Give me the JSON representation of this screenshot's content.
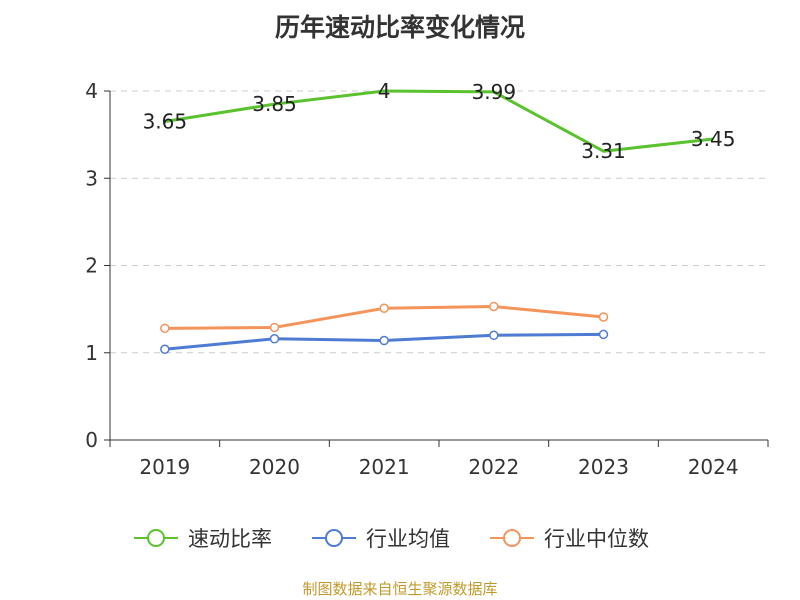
{
  "chart_data": {
    "type": "line",
    "title": "历年速动比率变化情况",
    "categories": [
      "2019",
      "2020",
      "2021",
      "2022",
      "2023",
      "2024"
    ],
    "ylim": [
      0,
      4
    ],
    "yticks": [
      "0",
      "1",
      "2",
      "3",
      "4"
    ],
    "grid": true,
    "series": [
      {
        "name": "速动比率",
        "color": "#5ac22e",
        "values": [
          3.65,
          3.85,
          4.0,
          3.99,
          3.31,
          3.45
        ],
        "labels": [
          "3.65",
          "3.85",
          "4",
          "3.99",
          "3.31",
          "3.45"
        ],
        "markers": false
      },
      {
        "name": "行业均值",
        "color": "#4e7bd3",
        "values": [
          1.04,
          1.16,
          1.14,
          1.2,
          1.21,
          null
        ],
        "markers": true
      },
      {
        "name": "行业中位数",
        "color": "#f4935a",
        "values": [
          1.28,
          1.29,
          1.51,
          1.53,
          1.41,
          null
        ],
        "markers": true
      }
    ],
    "legend_position": "bottom"
  },
  "footer": "制图数据来自恒生聚源数据库"
}
